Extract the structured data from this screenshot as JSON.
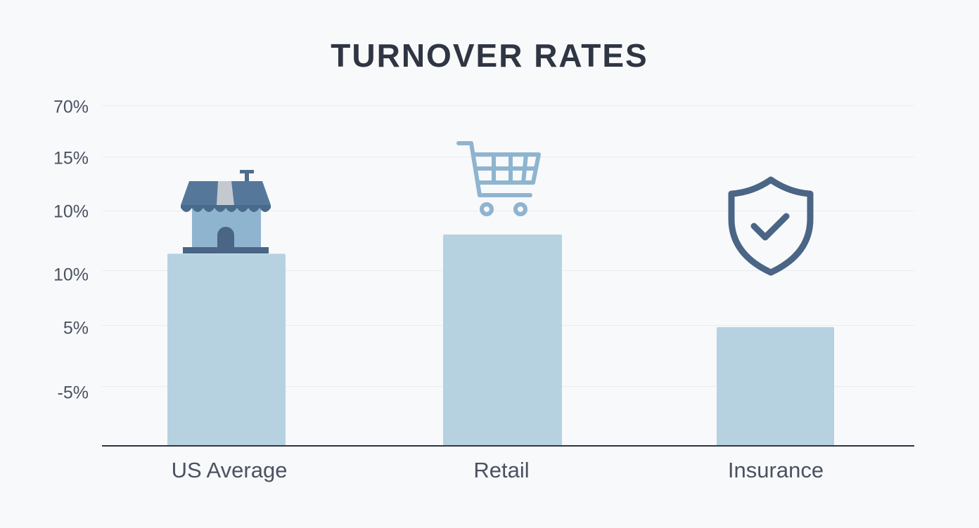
{
  "chart_data": {
    "type": "bar",
    "title": "TURNOVER RATES",
    "categories": [
      "US Average",
      "Retail",
      "Insurance"
    ],
    "values": [
      11,
      12.1,
      6.8
    ],
    "ytick_labels": [
      "70%",
      "15%",
      "10%",
      "10%",
      "5%",
      "-5%"
    ],
    "xlabel": "",
    "ylabel": "",
    "ylim": [
      0,
      19.5
    ],
    "grid": true,
    "bar_color": "#b6d2e1",
    "icons": [
      "storefront-icon",
      "shopping-cart-icon",
      "shield-check-icon"
    ]
  }
}
